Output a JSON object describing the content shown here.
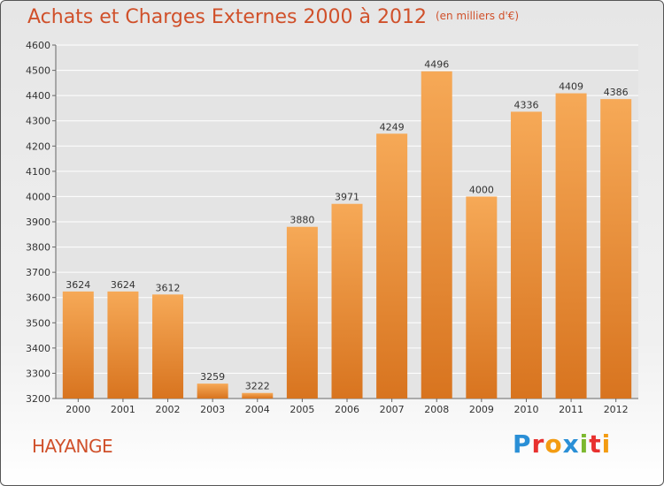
{
  "title": "Achats et Charges Externes 2000 à 2012",
  "unit_note": "(en milliers d'€)",
  "city": "HAYANGE",
  "logo": {
    "letters": [
      "P",
      "r",
      "o",
      "x",
      "i",
      "t",
      "i"
    ],
    "colors": [
      "#2a8fd6",
      "#e8312f",
      "#f39c12",
      "#2a8fd6",
      "#7cb82f",
      "#e8312f",
      "#f39c12"
    ]
  },
  "colors": {
    "bar_top": "#f6a957",
    "bar_bottom": "#d8741f",
    "title": "#d0502a",
    "grid": "#ffffff"
  },
  "chart_data": {
    "type": "bar",
    "categories": [
      "2000",
      "2001",
      "2002",
      "2003",
      "2004",
      "2005",
      "2006",
      "2007",
      "2008",
      "2009",
      "2010",
      "2011",
      "2012"
    ],
    "values": [
      3624,
      3624,
      3612,
      3259,
      3222,
      3880,
      3971,
      4249,
      4496,
      4000,
      4336,
      4409,
      4386
    ],
    "ylim": [
      3200,
      4600
    ],
    "yticks": [
      3200,
      3300,
      3400,
      3500,
      3600,
      3700,
      3800,
      3900,
      4000,
      4100,
      4200,
      4300,
      4400,
      4500,
      4600
    ],
    "grid": true,
    "xlabel": "",
    "ylabel": ""
  }
}
